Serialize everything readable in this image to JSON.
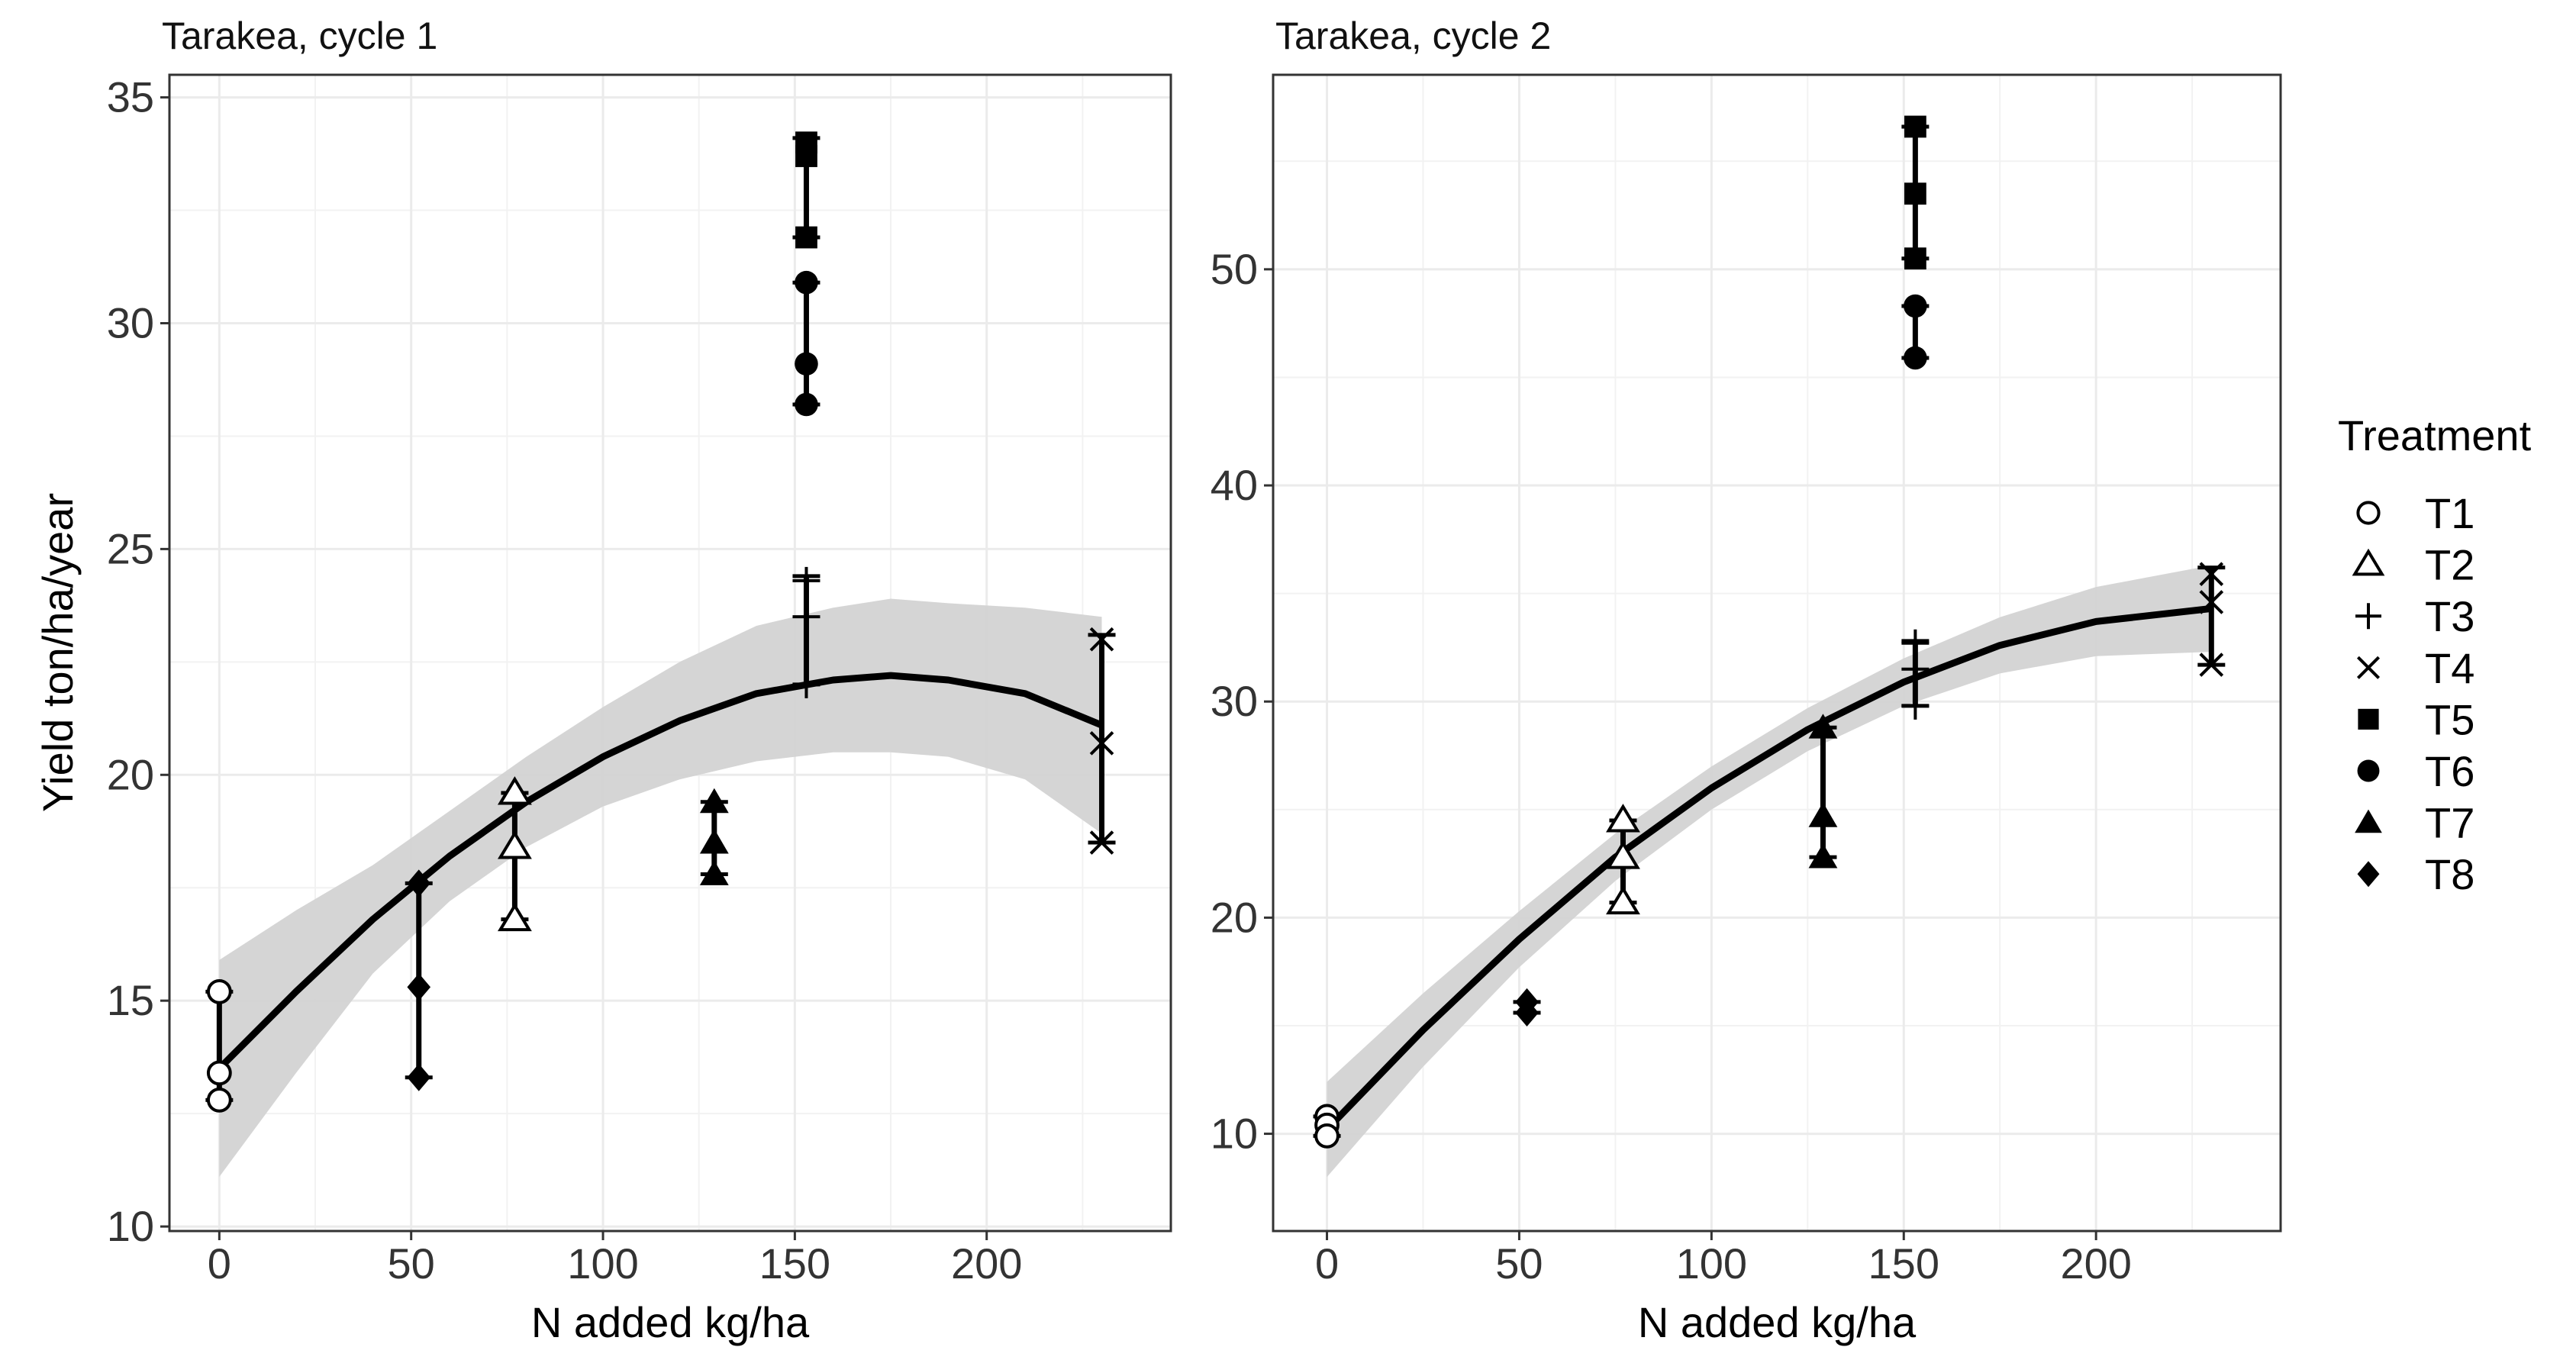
{
  "legend": {
    "title": "Treatment",
    "entries": [
      {
        "label": "T1",
        "shape": "open-circle"
      },
      {
        "label": "T2",
        "shape": "open-triangle"
      },
      {
        "label": "T3",
        "shape": "plus"
      },
      {
        "label": "T4",
        "shape": "cross"
      },
      {
        "label": "T5",
        "shape": "filled-square"
      },
      {
        "label": "T6",
        "shape": "filled-circle"
      },
      {
        "label": "T7",
        "shape": "filled-triangle"
      },
      {
        "label": "T8",
        "shape": "filled-diamond"
      }
    ]
  },
  "colors": {
    "marks": "#000000",
    "ribbon": "#d3d3d3",
    "grid": "#ebebeb",
    "border": "#333333"
  },
  "chart_data": [
    {
      "type": "scatter",
      "title": "Tarakea, cycle 1",
      "xlabel": "N added kg/ha",
      "ylabel": "Yield ton/ha/year",
      "xlim": [
        -13,
        248
      ],
      "ylim": [
        9.9,
        35.5
      ],
      "xticks": [
        0,
        50,
        100,
        150,
        200
      ],
      "xtick_labels": [
        "0",
        "50",
        "100",
        "150",
        "200"
      ],
      "yticks": [
        10,
        15,
        20,
        25,
        30,
        35
      ],
      "ytick_labels": [
        "10",
        "15",
        "20",
        "25",
        "30",
        "35"
      ],
      "grid": true,
      "series": [
        {
          "name": "T1",
          "x": 0,
          "values": [
            15.2,
            13.4,
            12.8
          ],
          "range": [
            12.8,
            15.2
          ]
        },
        {
          "name": "T2",
          "x": 77,
          "values": [
            19.6,
            18.4,
            16.8
          ],
          "range": [
            16.8,
            19.6
          ]
        },
        {
          "name": "T3",
          "x": 153,
          "values": [
            24.3,
            23.5,
            22.0
          ],
          "range": [
            22.0,
            24.4
          ]
        },
        {
          "name": "T4",
          "x": 230,
          "values": [
            23.0,
            20.7,
            18.5
          ],
          "range": [
            18.5,
            23.1
          ]
        },
        {
          "name": "T5",
          "x": 153,
          "values": [
            34.0,
            33.7,
            31.9
          ],
          "range": [
            31.9,
            34.1
          ]
        },
        {
          "name": "T6",
          "x": 153,
          "values": [
            30.9,
            29.1,
            28.2
          ],
          "range": [
            28.2,
            30.9
          ]
        },
        {
          "name": "T7",
          "x": 129,
          "values": [
            19.4,
            18.5,
            17.8
          ],
          "range": [
            17.8,
            19.4
          ]
        },
        {
          "name": "T8",
          "x": 52,
          "values": [
            17.6,
            15.3,
            13.3
          ],
          "range": [
            13.3,
            17.6
          ]
        }
      ],
      "fit": {
        "x": [
          0,
          20,
          40,
          60,
          80,
          100,
          120,
          140,
          160,
          175,
          190,
          210,
          230
        ],
        "y": [
          13.5,
          15.2,
          16.8,
          18.2,
          19.4,
          20.4,
          21.2,
          21.8,
          22.1,
          22.2,
          22.1,
          21.8,
          21.1
        ],
        "lower": [
          11.1,
          13.4,
          15.6,
          17.2,
          18.4,
          19.3,
          19.9,
          20.3,
          20.5,
          20.5,
          20.4,
          19.9,
          18.7
        ],
        "upper": [
          15.9,
          17.0,
          18.0,
          19.2,
          20.4,
          21.5,
          22.5,
          23.3,
          23.7,
          23.9,
          23.8,
          23.7,
          23.5
        ]
      }
    },
    {
      "type": "scatter",
      "title": "Tarakea, cycle 2",
      "xlabel": "N added kg/ha",
      "ylabel": "",
      "xlim": [
        -14,
        248
      ],
      "ylim": [
        5.5,
        59
      ],
      "xticks": [
        0,
        50,
        100,
        150,
        200
      ],
      "xtick_labels": [
        "0",
        "50",
        "100",
        "150",
        "200"
      ],
      "yticks": [
        10,
        20,
        30,
        40,
        50
      ],
      "ytick_labels": [
        "10",
        "20",
        "30",
        "40",
        "50"
      ],
      "grid": true,
      "series": [
        {
          "name": "T1",
          "x": 0,
          "values": [
            10.8,
            10.4,
            9.9
          ],
          "range": [
            9.9,
            10.8
          ]
        },
        {
          "name": "T2",
          "x": 77,
          "values": [
            24.5,
            22.8,
            20.7
          ],
          "range": [
            20.7,
            24.5
          ]
        },
        {
          "name": "T3",
          "x": 153,
          "values": [
            32.7,
            31.5,
            29.8
          ],
          "range": [
            29.8,
            32.8
          ]
        },
        {
          "name": "T4",
          "x": 230,
          "values": [
            35.9,
            34.6,
            31.7
          ],
          "range": [
            31.7,
            36.2
          ]
        },
        {
          "name": "T5",
          "x": 153,
          "values": [
            56.6,
            53.5,
            50.5
          ],
          "range": [
            50.5,
            56.6
          ]
        },
        {
          "name": "T6",
          "x": 153,
          "values": [
            48.3,
            45.9
          ],
          "range": [
            45.9,
            48.3
          ]
        },
        {
          "name": "T7",
          "x": 129,
          "values": [
            28.8,
            24.7,
            22.8
          ],
          "range": [
            22.8,
            28.8
          ]
        },
        {
          "name": "T8",
          "x": 52,
          "values": [
            16.1,
            15.6
          ],
          "range": [
            15.6,
            16.1
          ]
        }
      ],
      "fit": {
        "x": [
          0,
          25,
          50,
          75,
          100,
          125,
          150,
          175,
          200,
          230
        ],
        "y": [
          10.2,
          14.8,
          19.0,
          22.8,
          26.0,
          28.7,
          30.9,
          32.6,
          33.7,
          34.3
        ],
        "lower": [
          8.0,
          13.1,
          17.7,
          21.7,
          25.0,
          27.7,
          29.8,
          31.3,
          32.1,
          32.3
        ],
        "upper": [
          12.4,
          16.5,
          20.3,
          23.9,
          27.0,
          29.7,
          32.0,
          33.9,
          35.3,
          36.3
        ]
      }
    }
  ]
}
